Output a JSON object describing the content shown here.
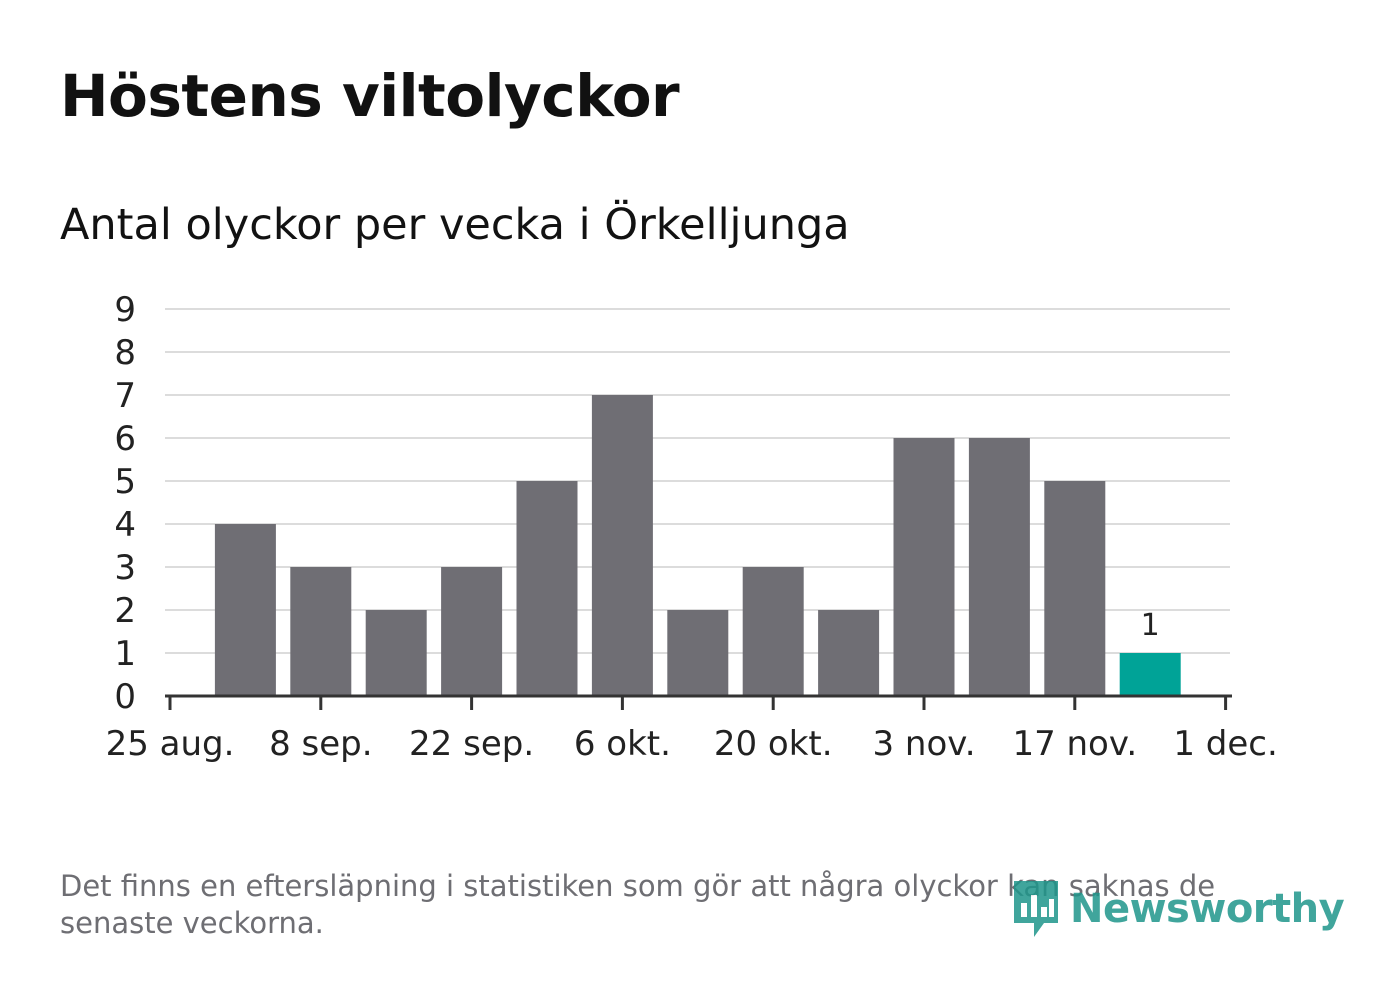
{
  "title": "Höstens viltolyckor",
  "subtitle": "Antal olyckor per vecka i Örkelljunga",
  "footnote": "Det finns en eftersläpning i statistiken som gör att några olyckor kan saknas de senaste veckorna.",
  "logo": {
    "text": "Newsworthy",
    "icon": "bar-chart-speech-bubble-icon",
    "color": "#1f968b"
  },
  "chart_data": {
    "type": "bar",
    "x_tick_labels": [
      "25 aug.",
      "8 sep.",
      "22 sep.",
      "6 okt.",
      "20 okt.",
      "3 nov.",
      "17 nov.",
      "1 dec."
    ],
    "y_tick_labels": [
      "0",
      "1",
      "2",
      "3",
      "4",
      "5",
      "6",
      "7",
      "8",
      "9"
    ],
    "ylim": [
      0,
      9
    ],
    "grid": true,
    "values": [
      4,
      3,
      2,
      3,
      5,
      7,
      2,
      3,
      2,
      6,
      6,
      5,
      1
    ],
    "highlight_index": 12,
    "data_labels": [
      {
        "index": 12,
        "text": "1"
      }
    ],
    "colors": {
      "bar": "#6f6e74",
      "highlight": "#00a397",
      "grid": "#dcdcdc",
      "axis": "#333333",
      "text": "#222222"
    }
  }
}
